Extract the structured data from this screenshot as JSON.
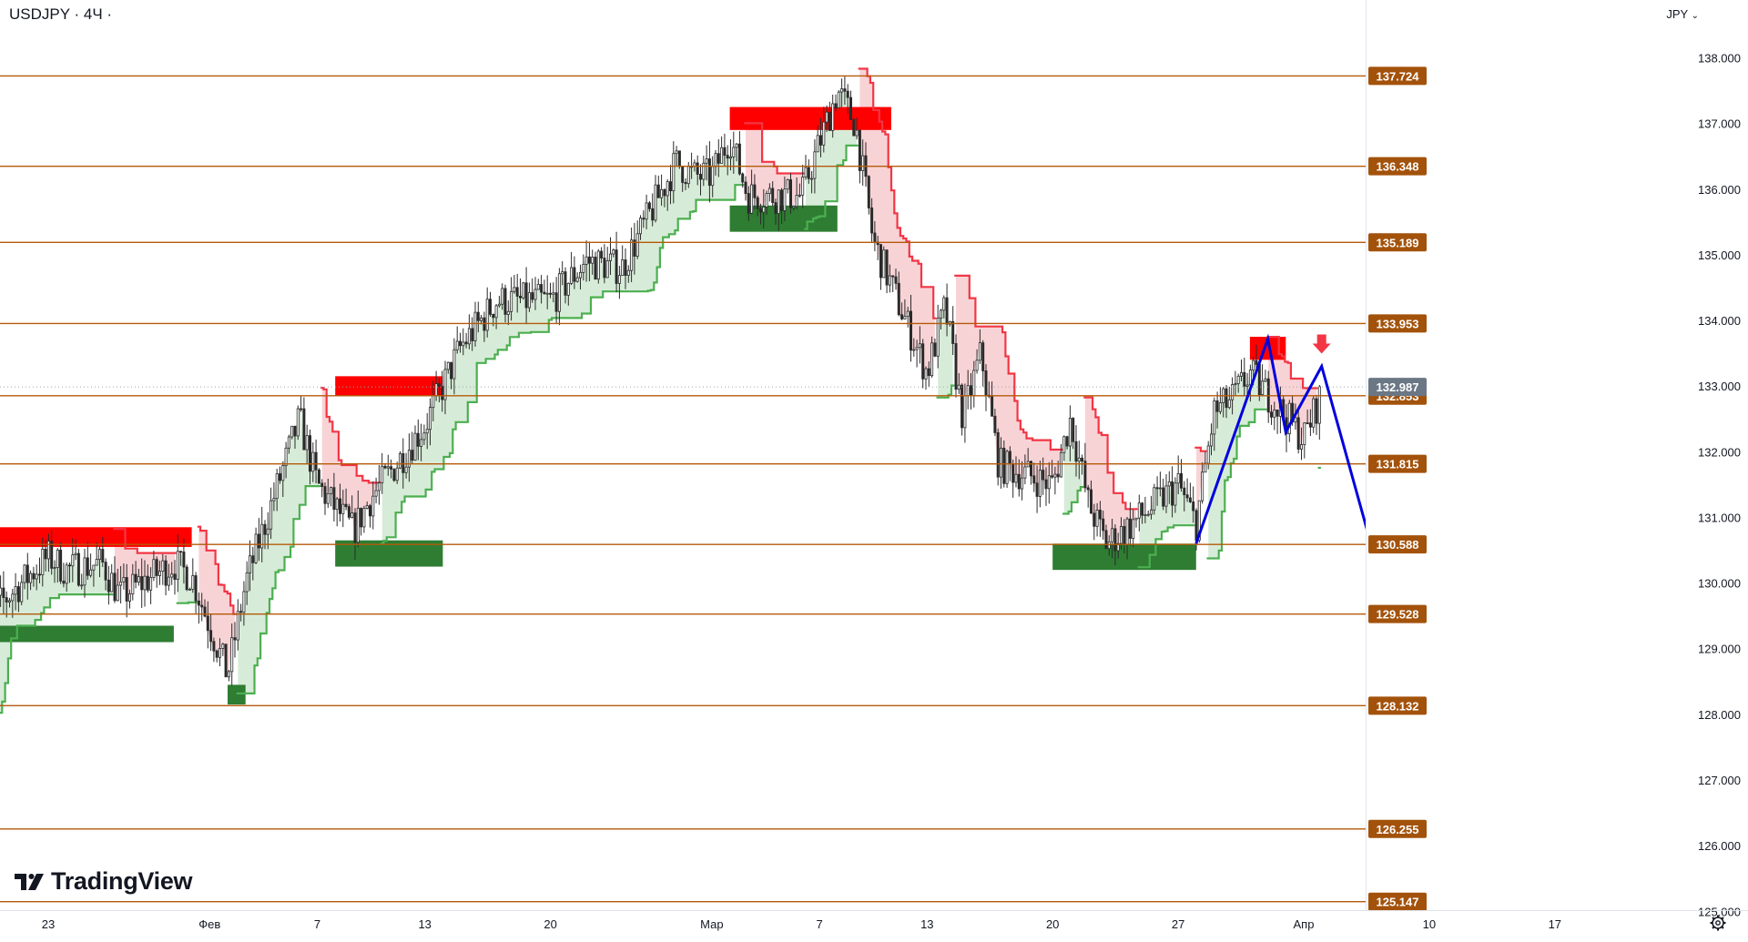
{
  "header": {
    "symbol_line": "USDJPY · 4Ч ·",
    "currency_label": "JPY"
  },
  "brand": {
    "name": "TradingView"
  },
  "icons": {
    "settings": "gear-icon",
    "currency_menu": "chevron-down-icon",
    "logo": "tradingview-logo-icon"
  },
  "colors": {
    "level_line": "#b45a0a",
    "level_label_bg": "#a3520b",
    "bull": "#2e7d32",
    "bear": "#ff0000",
    "bull_fill": "#d7ecd8",
    "bear_fill": "#f8d3d6",
    "bull_trail": "#4caf50",
    "bear_trail": "#f23645",
    "forecast": "#0000dd",
    "target_green": "#00c000",
    "target_red": "#f23645"
  },
  "chart_data": {
    "type": "candlestick",
    "symbol": "USDJPY",
    "timeframe": "4Ч",
    "ylim": [
      124.9,
      138.3
    ],
    "grid": false,
    "x_tick_labels": [
      "23",
      "Фев",
      "7",
      "13",
      "20",
      "Мар",
      "7",
      "13",
      "20",
      "27",
      "Апр",
      "10",
      "17"
    ],
    "y_tick_labels": [
      138.0,
      137.0,
      136.0,
      135.0,
      134.0,
      133.0,
      132.0,
      131.0,
      130.0,
      129.0,
      128.0,
      127.0,
      126.0,
      125.0
    ],
    "horizontal_levels": [
      137.724,
      136.348,
      135.189,
      133.953,
      132.853,
      131.815,
      130.588,
      129.528,
      128.132,
      126.255,
      125.147
    ],
    "current_price": 132.987,
    "callouts": [
      {
        "label": "133.953",
        "level": 133.953,
        "style": "green",
        "marker": "cross"
      },
      {
        "label": "131.815",
        "level": 131.815,
        "style": "red"
      },
      {
        "label": "128.132",
        "level": 128.132,
        "style": "black"
      },
      {
        "label": "126.255",
        "level": 126.255,
        "style": "black"
      }
    ],
    "price_path": [
      [
        "2023-01-19",
        128.5
      ],
      [
        "2023-01-20",
        129.6
      ],
      [
        "2023-01-23",
        130.4
      ],
      [
        "2023-01-24",
        130.2
      ],
      [
        "2023-01-26",
        130.3
      ],
      [
        "2023-01-27",
        129.8
      ],
      [
        "2023-01-30",
        130.3
      ],
      [
        "2023-01-31",
        130.1
      ],
      [
        "2023-02-02",
        128.6
      ],
      [
        "2023-02-03",
        130.0
      ],
      [
        "2023-02-06",
        132.5
      ],
      [
        "2023-02-07",
        131.5
      ],
      [
        "2023-02-09",
        130.8
      ],
      [
        "2023-02-10",
        131.3
      ],
      [
        "2023-02-13",
        132.4
      ],
      [
        "2023-02-15",
        133.6
      ],
      [
        "2023-02-17",
        134.3
      ],
      [
        "2023-02-20",
        134.3
      ],
      [
        "2023-02-22",
        134.9
      ],
      [
        "2023-02-24",
        134.8
      ],
      [
        "2023-02-27",
        136.4
      ],
      [
        "2023-02-28",
        136.2
      ],
      [
        "2023-03-01",
        136.2
      ],
      [
        "2023-03-02",
        136.8
      ],
      [
        "2023-03-03",
        135.9
      ],
      [
        "2023-03-06",
        135.9
      ],
      [
        "2023-03-08",
        137.5
      ],
      [
        "2023-03-09",
        137.0
      ],
      [
        "2023-03-10",
        135.2
      ],
      [
        "2023-03-13",
        133.2
      ],
      [
        "2023-03-14",
        134.2
      ],
      [
        "2023-03-15",
        132.5
      ],
      [
        "2023-03-16",
        133.5
      ],
      [
        "2023-03-17",
        131.8
      ],
      [
        "2023-03-20",
        131.5
      ],
      [
        "2023-03-21",
        132.5
      ],
      [
        "2023-03-22",
        131.2
      ],
      [
        "2023-03-23",
        130.6
      ],
      [
        "2023-03-24",
        130.8
      ],
      [
        "2023-03-27",
        131.5
      ],
      [
        "2023-03-28",
        130.9
      ],
      [
        "2023-03-29",
        132.6
      ],
      [
        "2023-03-30",
        132.8
      ],
      [
        "2023-03-31",
        133.2
      ],
      [
        "2023-04-03",
        132.2
      ],
      [
        "2023-04-04",
        132.9
      ]
    ],
    "zones": [
      {
        "type": "supply",
        "from": "2023-01-19",
        "to": "2023-01-31",
        "low": 130.55,
        "high": 130.85
      },
      {
        "type": "demand",
        "from": "2023-01-20",
        "to": "2023-01-30",
        "low": 129.1,
        "high": 129.35
      },
      {
        "type": "demand",
        "from": "2023-02-02",
        "to": "2023-02-03",
        "low": 128.15,
        "high": 128.45
      },
      {
        "type": "supply",
        "from": "2023-02-08",
        "to": "2023-02-14",
        "low": 132.85,
        "high": 133.15
      },
      {
        "type": "demand",
        "from": "2023-02-08",
        "to": "2023-02-14",
        "low": 130.25,
        "high": 130.65
      },
      {
        "type": "supply",
        "from": "2023-03-02",
        "to": "2023-03-11",
        "low": 136.9,
        "high": 137.25
      },
      {
        "type": "demand",
        "from": "2023-03-02",
        "to": "2023-03-08",
        "low": 135.35,
        "high": 135.75
      },
      {
        "type": "demand",
        "from": "2023-03-20",
        "to": "2023-03-28",
        "low": 130.2,
        "high": 130.6
      },
      {
        "type": "supply",
        "from": "2023-03-31",
        "to": "2023-04-02",
        "low": 133.4,
        "high": 133.75
      }
    ],
    "forecast_path": [
      [
        "2023-03-28",
        130.6
      ],
      [
        "2023-04-01",
        133.72
      ],
      [
        "2023-04-02",
        132.3
      ],
      [
        "2023-04-04",
        133.3
      ],
      [
        "2023-04-10",
        127.4
      ]
    ]
  }
}
